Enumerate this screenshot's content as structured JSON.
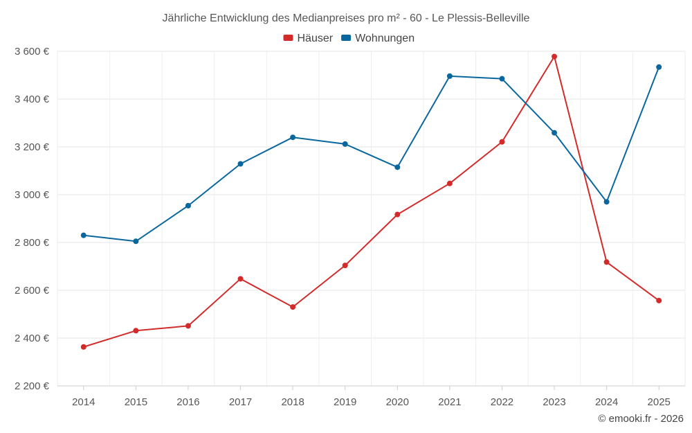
{
  "chart_data": {
    "type": "line",
    "title": "Jährliche Entwicklung des Medianpreises pro m² - 60 - Le Plessis-Belleville",
    "categories": [
      "2014",
      "2015",
      "2016",
      "2017",
      "2018",
      "2019",
      "2020",
      "2021",
      "2022",
      "2023",
      "2024",
      "2025"
    ],
    "series": [
      {
        "name": "Häuser",
        "color": "#d32a2a",
        "values": [
          2363,
          2431,
          2451,
          2648,
          2530,
          2704,
          2917,
          3047,
          3221,
          3578,
          2718,
          2557
        ]
      },
      {
        "name": "Wohnungen",
        "color": "#0a679e",
        "values": [
          2830,
          2805,
          2954,
          3129,
          3240,
          3212,
          3115,
          3496,
          3485,
          3259,
          2970,
          3534
        ]
      }
    ],
    "yticks": [
      2200,
      2400,
      2600,
      2800,
      3000,
      3200,
      3400,
      3600
    ],
    "ytick_labels": [
      "2 200 €",
      "2 400 €",
      "2 600 €",
      "2 800 €",
      "3 000 €",
      "3 200 €",
      "3 400 €",
      "3 600 €"
    ],
    "ylim": [
      2200,
      3600
    ],
    "xlabel": "",
    "ylabel": "",
    "grid": true,
    "legend_position": "top-center"
  },
  "credit": "© emooki.fr - 2026"
}
